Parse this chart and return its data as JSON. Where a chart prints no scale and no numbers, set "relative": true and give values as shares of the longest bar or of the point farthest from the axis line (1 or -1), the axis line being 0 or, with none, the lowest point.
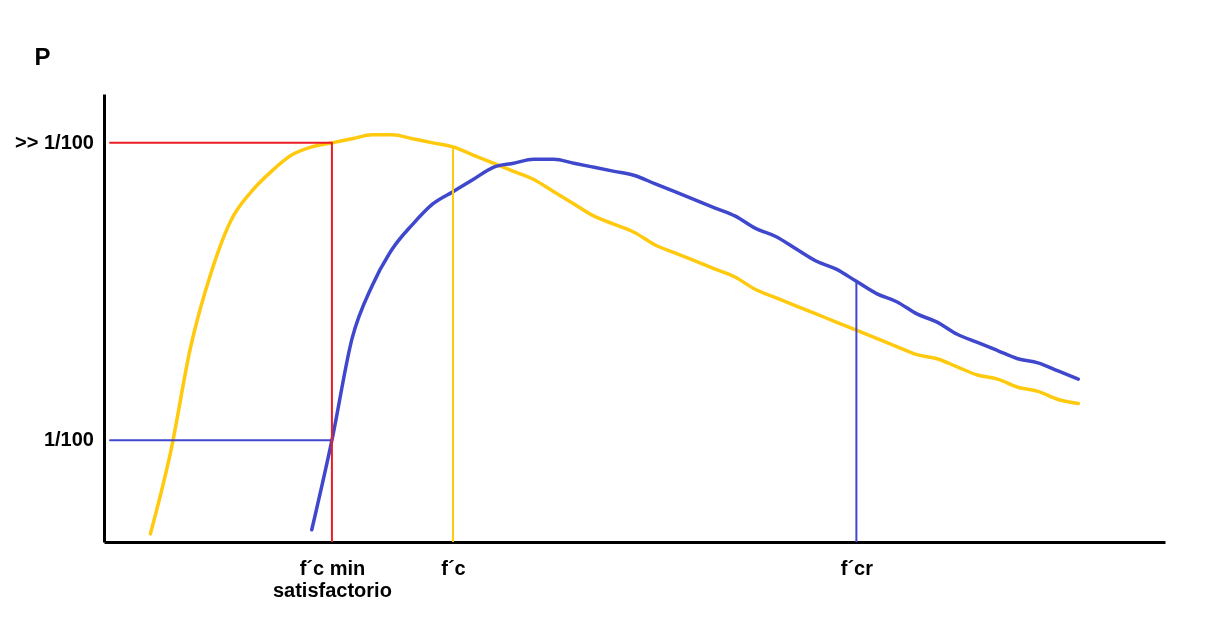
{
  "chart_data": {
    "type": "line",
    "relative": true,
    "ylabel": "P",
    "grid": false,
    "categories": [
      null,
      null,
      null,
      null,
      null,
      null,
      null,
      null,
      null,
      null,
      null,
      "f´c min\nsatisfactorio",
      null,
      null,
      null,
      null,
      null,
      "f´c",
      null,
      null,
      null,
      null,
      null,
      null,
      null,
      null,
      null,
      null,
      null,
      null,
      null,
      null,
      null,
      null,
      null,
      null,
      null,
      "f´cr",
      null,
      null,
      null,
      null,
      null,
      null,
      null,
      null,
      null,
      null,
      null,
      null,
      null,
      null,
      null
    ],
    "series": [
      {
        "color": "#ffc90e",
        "values": [
          null,
          null,
          0.02,
          0.22,
          0.48,
          0.66,
          0.79,
          0.86,
          0.91,
          0.95,
          0.97,
          0.98,
          0.99,
          1.0,
          1.0,
          0.99,
          0.98,
          0.97,
          0.95,
          0.93,
          0.91,
          0.89,
          0.86,
          0.83,
          0.8,
          0.78,
          0.76,
          0.73,
          0.71,
          0.69,
          0.67,
          0.65,
          0.62,
          0.6,
          0.58,
          0.56,
          0.54,
          0.52,
          0.5,
          0.48,
          0.46,
          0.45,
          0.43,
          0.41,
          0.4,
          0.38,
          0.37,
          0.35,
          0.34,
          null,
          null,
          null,
          null
        ]
      },
      {
        "color": "#3f48cc",
        "values": [
          null,
          null,
          null,
          null,
          null,
          null,
          null,
          null,
          null,
          null,
          0.03,
          0.25,
          0.5,
          0.63,
          0.72,
          0.78,
          0.83,
          0.86,
          0.89,
          0.92,
          0.93,
          0.94,
          0.94,
          0.93,
          0.92,
          0.91,
          0.9,
          0.88,
          0.86,
          0.84,
          0.82,
          0.8,
          0.77,
          0.75,
          0.72,
          0.69,
          0.67,
          0.64,
          0.61,
          0.59,
          0.56,
          0.54,
          0.51,
          0.49,
          0.47,
          0.45,
          0.44,
          0.42,
          0.4,
          null,
          null,
          null,
          null
        ]
      },
      {
        "name": ">> 1/100",
        "color": "#ed1c24",
        "values": [
          0.98,
          0.98,
          0.98,
          0.98,
          0.98,
          0.98,
          0.98,
          0.98,
          0.98,
          0.98,
          0.98,
          0.98,
          null,
          null,
          null,
          null,
          null,
          null,
          null,
          null,
          null,
          null,
          null,
          null,
          null,
          null,
          null,
          null,
          null,
          null,
          null,
          null,
          null,
          null,
          null,
          null,
          null,
          null,
          null,
          null,
          null,
          null,
          null,
          null,
          null,
          null,
          null,
          null,
          null,
          null,
          null,
          null,
          null
        ]
      },
      {
        "name": "1/100",
        "color": "#3f48cc",
        "values": [
          0.25,
          0.25,
          0.25,
          0.25,
          0.25,
          0.25,
          0.25,
          0.25,
          0.25,
          0.25,
          0.25,
          0.25,
          null,
          null,
          null,
          null,
          null,
          null,
          null,
          null,
          null,
          null,
          null,
          null,
          null,
          null,
          null,
          null,
          null,
          null,
          null,
          null,
          null,
          null,
          null,
          null,
          null,
          null,
          null,
          null,
          null,
          null,
          null,
          null,
          null,
          null,
          null,
          null,
          null,
          null,
          null,
          null,
          null
        ]
      },
      {
        "type": "bar",
        "color": "#ed1c24",
        "values": [
          null,
          null,
          null,
          null,
          null,
          null,
          null,
          null,
          null,
          null,
          null,
          0.98,
          null,
          null,
          null,
          null,
          null,
          null,
          null,
          null,
          null,
          null,
          null,
          null,
          null,
          null,
          null,
          null,
          null,
          null,
          null,
          null,
          null,
          null,
          null,
          null,
          null,
          null,
          null,
          null,
          null,
          null,
          null,
          null,
          null,
          null,
          null,
          null,
          null,
          null,
          null,
          null,
          null
        ]
      },
      {
        "type": "bar",
        "color": "#ffc90e",
        "values": [
          null,
          null,
          null,
          null,
          null,
          null,
          null,
          null,
          null,
          null,
          null,
          null,
          null,
          null,
          null,
          null,
          null,
          0.97,
          null,
          null,
          null,
          null,
          null,
          null,
          null,
          null,
          null,
          null,
          null,
          null,
          null,
          null,
          null,
          null,
          null,
          null,
          null,
          null,
          null,
          null,
          null,
          null,
          null,
          null,
          null,
          null,
          null,
          null,
          null,
          null,
          null,
          null,
          null
        ]
      },
      {
        "type": "bar",
        "color": "#3f48cc",
        "values": [
          null,
          null,
          null,
          null,
          null,
          null,
          null,
          null,
          null,
          null,
          null,
          null,
          null,
          null,
          null,
          null,
          null,
          null,
          null,
          null,
          null,
          null,
          null,
          null,
          null,
          null,
          null,
          null,
          null,
          null,
          null,
          null,
          null,
          null,
          null,
          null,
          null,
          0.64,
          null,
          null,
          null,
          null,
          null,
          null,
          null,
          null,
          null,
          null,
          null,
          null,
          null,
          null,
          null
        ]
      }
    ]
  }
}
